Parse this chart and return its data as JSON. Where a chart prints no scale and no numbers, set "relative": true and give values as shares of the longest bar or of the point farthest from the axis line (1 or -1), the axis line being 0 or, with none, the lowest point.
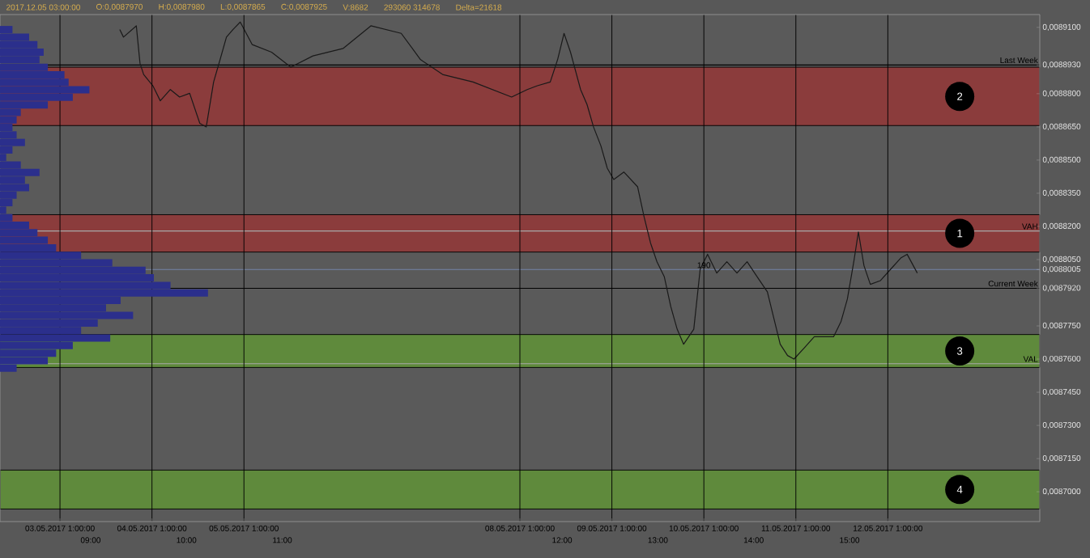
{
  "chart_data": [
    {
      "type": "bar",
      "orientation": "horizontal",
      "relative": true,
      "color": "#2b2f8c",
      "categories": [
        null,
        null,
        null,
        null,
        null,
        null,
        null,
        null,
        null,
        null,
        null,
        null,
        null,
        null,
        null,
        null,
        null,
        null,
        null,
        null,
        null,
        null,
        null,
        null,
        null,
        null,
        null,
        null,
        null,
        null,
        null,
        null,
        null,
        null,
        null,
        null,
        null,
        null,
        null,
        null,
        null,
        null,
        null,
        null,
        null,
        null
      ],
      "values": [
        0.06,
        0.14,
        0.18,
        0.21,
        0.19,
        0.23,
        0.31,
        0.33,
        0.43,
        0.35,
        0.23,
        0.1,
        0.08,
        0.06,
        0.08,
        0.12,
        0.06,
        0.03,
        0.1,
        0.19,
        0.12,
        0.14,
        0.08,
        0.06,
        0.03,
        0.06,
        0.14,
        0.18,
        0.23,
        0.27,
        0.39,
        0.54,
        0.7,
        0.74,
        0.82,
        1,
        0.58,
        0.51,
        0.64,
        0.47,
        0.39,
        0.53,
        0.35,
        0.27,
        0.23,
        0.08
      ]
    },
    {
      "type": "line",
      "grid": "x",
      "color": "#1a1a1a",
      "x": [
        "2017-05-03T16:36",
        "2017-05-03T17:34",
        "2017-05-03T20:55",
        "2017-05-03T21:53",
        "2017-05-03T22:50",
        "2017-05-04T01:14",
        "2017-05-04T03:10",
        "2017-05-04T05:48",
        "2017-05-04T08:12",
        "2017-05-04T10:50",
        "2017-05-04T13:29",
        "2017-05-04T15:10",
        "2017-05-04T17:05",
        "2017-05-04T18:46",
        "2017-05-04T20:26",
        "2017-05-04T22:07",
        "2017-05-05T00:02",
        "2017-05-05T03:10",
        "2017-05-05T08:12",
        "2017-05-05T13:14",
        "2017-05-05T19:00",
        "2017-05-06T02:55",
        "2017-05-06T10:07",
        "2017-05-06T18:02",
        "2017-05-06T23:05",
        "2017-05-07T04:50",
        "2017-05-07T12:46",
        "2017-05-07T22:50",
        "2017-05-08T02:55",
        "2017-05-08T05:34",
        "2017-05-08T08:55",
        "2017-05-08T10:50",
        "2017-05-08T12:31",
        "2017-05-08T14:12",
        "2017-05-08T16:50",
        "2017-05-08T18:31",
        "2017-05-08T20:12",
        "2017-05-08T22:07",
        "2017-05-08T23:48",
        "2017-05-09T01:29",
        "2017-05-09T04:07",
        "2017-05-09T07:43",
        "2017-05-09T09:24",
        "2017-05-09T11:05",
        "2017-05-09T12:46",
        "2017-05-09T14:41",
        "2017-05-09T16:22",
        "2017-05-09T18:02",
        "2017-05-09T19:43",
        "2017-05-09T22:22",
        "2017-05-10T00:02",
        "2017-05-10T01:58",
        "2017-05-10T04:22",
        "2017-05-10T07:00",
        "2017-05-10T09:38",
        "2017-05-10T12:17",
        "2017-05-10T14:55",
        "2017-05-10T17:34",
        "2017-05-10T19:14",
        "2017-05-10T20:55",
        "2017-05-10T22:50",
        "2017-05-11T00:31",
        "2017-05-11T03:10",
        "2017-05-11T05:48",
        "2017-05-11T08:12",
        "2017-05-11T10:50",
        "2017-05-11T12:46",
        "2017-05-11T14:26",
        "2017-05-11T16:07",
        "2017-05-11T17:19",
        "2017-05-11T18:46",
        "2017-05-11T20:26",
        "2017-05-11T23:05",
        "2017-05-12T01:43",
        "2017-05-12T04:22",
        "2017-05-12T06:02",
        "2017-05-12T08:41"
      ],
      "values": [
        0.008909,
        0.0089056,
        0.0089107,
        0.0088937,
        0.0088887,
        0.0088836,
        0.0088768,
        0.0088819,
        0.0088785,
        0.0088802,
        0.0088666,
        0.008865,
        0.0088853,
        0.0088954,
        0.0089056,
        0.008909,
        0.0089124,
        0.0089022,
        0.0088988,
        0.008892,
        0.0088971,
        0.0089005,
        0.0089107,
        0.0089073,
        0.0088954,
        0.0088887,
        0.0088853,
        0.0088785,
        0.0088819,
        0.0088836,
        0.0088853,
        0.0088954,
        0.0089073,
        0.0088988,
        0.0088819,
        0.0088751,
        0.008865,
        0.0088565,
        0.0088463,
        0.0088412,
        0.0088446,
        0.0088379,
        0.0088243,
        0.0088125,
        0.008804,
        0.0087972,
        0.0087837,
        0.0087735,
        0.0087667,
        0.0087735,
        0.0088006,
        0.0088074,
        0.0087989,
        0.008804,
        0.0087989,
        0.008804,
        0.0087972,
        0.0087904,
        0.0087786,
        0.0087667,
        0.0087616,
        0.00876,
        0.008765,
        0.0087701,
        0.0087701,
        0.0087701,
        0.0087769,
        0.0087871,
        0.008804,
        0.0088175,
        0.0088023,
        0.0087938,
        0.0087955,
        0.0088006,
        0.0088057,
        0.0088074,
        0.0087989
      ],
      "xlim": [
        "2017-05-02T09:21",
        "2017-05-13T16:39"
      ],
      "xticks": [
        {
          "value": "2017-05-03T01:00",
          "label": "03.05.2017 1:00:00"
        },
        {
          "value": "2017-05-04T01:00",
          "label": "04.05.2017 1:00:00"
        },
        {
          "value": "2017-05-05T01:00",
          "label": "05.05.2017 1:00:00"
        },
        {
          "value": "2017-05-08T01:00",
          "label": "08.05.2017 1:00:00"
        },
        {
          "value": "2017-05-09T01:00",
          "label": "09.05.2017 1:00:00"
        },
        {
          "value": "2017-05-10T01:00",
          "label": "10.05.2017 1:00:00"
        },
        {
          "value": "2017-05-11T01:00",
          "label": "11.05.2017 1:00:00"
        },
        {
          "value": "2017-05-12T01:00",
          "label": "12.05.2017 1:00:00"
        }
      ],
      "x2lim": [
        "2017-05-02T09:21",
        "2017-05-13T16:39"
      ],
      "x2ticks": [
        {
          "value": "2017-05-03T09:00",
          "label": "09:00"
        },
        {
          "value": "2017-05-04T10:00",
          "label": "10:00"
        },
        {
          "value": "2017-05-05T11:00",
          "label": "11:00"
        },
        {
          "value": "2017-05-08T12:00",
          "label": "12:00"
        },
        {
          "value": "2017-05-09T13:00",
          "label": "13:00"
        },
        {
          "value": "2017-05-10T14:00",
          "label": "14:00"
        },
        {
          "value": "2017-05-11T15:00",
          "label": "15:00"
        }
      ],
      "ylim": [
        0.0086865,
        0.0089158
      ],
      "yticks": [
        {
          "value": 0.00891,
          "label": "0,0089100"
        },
        {
          "value": 0.008893,
          "label": "0,0088930"
        },
        {
          "value": 0.00888,
          "label": "0,0088800"
        },
        {
          "value": 0.008865,
          "label": "0,0088650"
        },
        {
          "value": 0.00885,
          "label": "0,0088500"
        },
        {
          "value": 0.008835,
          "label": "0,0088350"
        },
        {
          "value": 0.00882,
          "label": "0,0088200"
        },
        {
          "value": 0.008805,
          "label": "0,0088050"
        },
        {
          "value": 0.0088005,
          "label": "0,0088005"
        },
        {
          "value": 0.008792,
          "label": "0,0087920"
        },
        {
          "value": 0.008775,
          "label": "0,0087750"
        },
        {
          "value": 0.00876,
          "label": "0,0087600"
        },
        {
          "value": 0.008745,
          "label": "0,0087450"
        },
        {
          "value": 0.00873,
          "label": "0,0087300"
        },
        {
          "value": 0.008715,
          "label": "0,0087150"
        },
        {
          "value": 0.0087,
          "label": "0,0087000"
        }
      ],
      "bands": [
        {
          "axis": "y",
          "from": 0.0088656,
          "to": 0.008892,
          "label": "2",
          "color": "#8b3c3c"
        },
        {
          "axis": "y",
          "from": 0.0088084,
          "to": 0.0088253,
          "label": "1",
          "color": "#8b3c3c"
        },
        {
          "axis": "y",
          "from": 0.0087562,
          "to": 0.0087711,
          "label": "3",
          "color": "#5f8a3c"
        },
        {
          "axis": "y",
          "from": 0.0086922,
          "to": 0.0087098,
          "label": "4",
          "color": "#5f8a3c"
        }
      ],
      "ref_lines": [
        {
          "axis": "y",
          "value": 0.008893,
          "label": "Last Week",
          "color": "#000000"
        },
        {
          "axis": "y",
          "value": 0.008792,
          "label": "Current Week",
          "color": "#000000"
        },
        {
          "axis": "y",
          "value": 0.0088005,
          "color": "#7485a8"
        },
        {
          "axis": "y",
          "value": 0.0088179,
          "label": "VAH",
          "color": "#a8a8a8"
        },
        {
          "axis": "y",
          "value": 0.0087579,
          "label": "VAL",
          "color": "#a8a8a8"
        }
      ],
      "annotations": [
        "2017.12.05 03:00:00",
        "O:0,0087970",
        "H:0,0087980",
        "L:0,0087865",
        "C:0,0087925",
        "V:8682",
        "293060 314678",
        "Delta=21618",
        {
          "text": "190",
          "x": "2017-05-10T01:00",
          "y": 0.0088006
        }
      ]
    }
  ]
}
